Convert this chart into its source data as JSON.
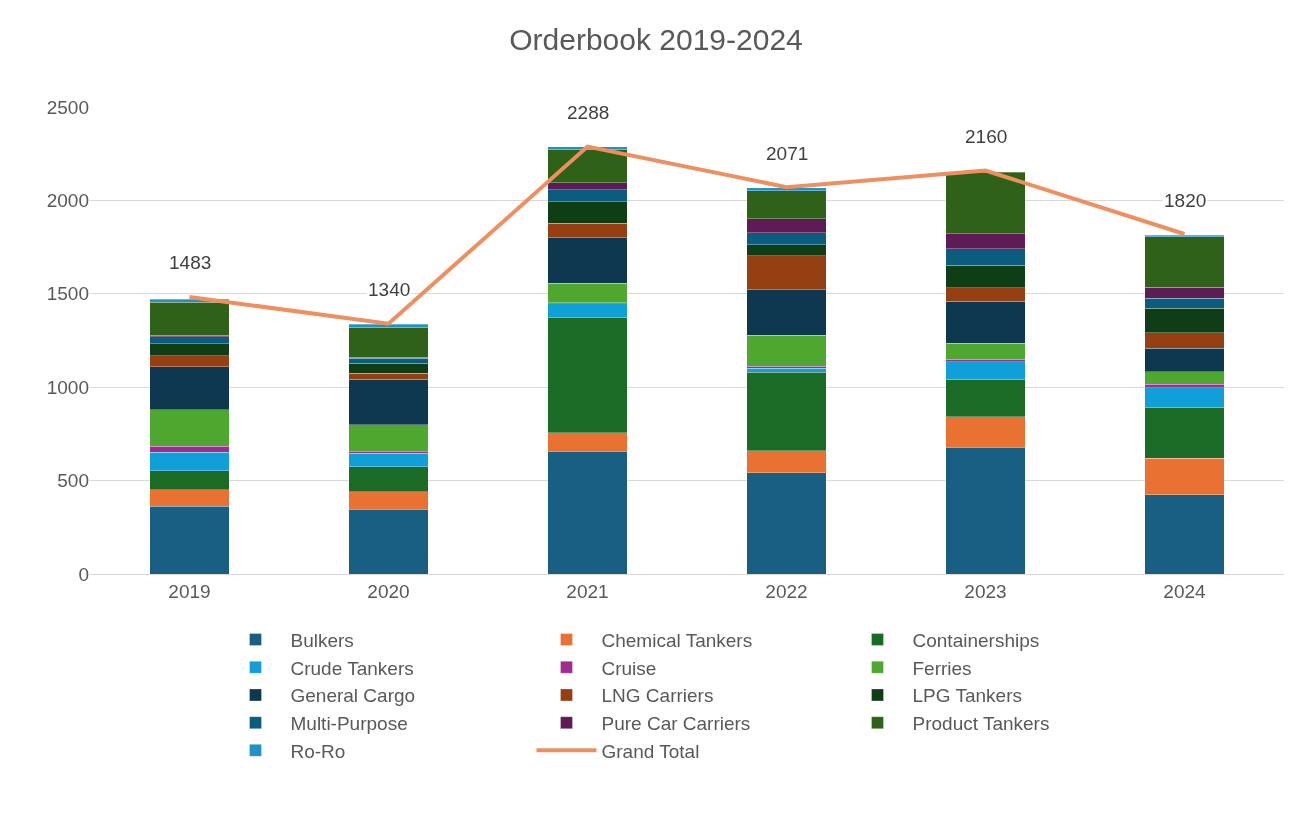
{
  "chart_data": {
    "type": "bar",
    "title": "Orderbook 2019-2024",
    "stacked": true,
    "categories": [
      "2019",
      "2020",
      "2021",
      "2022",
      "2023",
      "2024"
    ],
    "series": [
      {
        "name": "Bulkers",
        "color": "#185f83",
        "values": [
          363,
          346,
          657,
          541,
          679,
          425
        ]
      },
      {
        "name": "Chemical Tankers",
        "color": "#e97132",
        "values": [
          89,
          95,
          100,
          120,
          164,
          196
        ]
      },
      {
        "name": "Containerships",
        "color": "#1a6b25",
        "values": [
          102,
          134,
          618,
          420,
          200,
          271
        ]
      },
      {
        "name": "Crude Tankers",
        "color": "#119fd8",
        "values": [
          98,
          71,
          71,
          21,
          93,
          105
        ]
      },
      {
        "name": "Cruise",
        "color": "#a02b93",
        "values": [
          32,
          9,
          5,
          11,
          14,
          18
        ]
      },
      {
        "name": "Ferries",
        "color": "#4ea72e",
        "values": [
          196,
          145,
          105,
          164,
          84,
          68
        ]
      },
      {
        "name": "General Cargo",
        "color": "#0e384f",
        "values": [
          229,
          243,
          243,
          245,
          227,
          125
        ]
      },
      {
        "name": "LNG Carriers",
        "color": "#953f12",
        "values": [
          59,
          32,
          80,
          182,
          71,
          84
        ]
      },
      {
        "name": "LPG Tankers",
        "color": "#0f3d16",
        "values": [
          64,
          54,
          113,
          59,
          121,
          130
        ]
      },
      {
        "name": "Multi-Purpose",
        "color": "#0b5c7e",
        "values": [
          39,
          25,
          64,
          64,
          88,
          55
        ]
      },
      {
        "name": "Pure Car Carriers",
        "color": "#5f1b55",
        "values": [
          8,
          7,
          38,
          75,
          80,
          57
        ]
      },
      {
        "name": "Product Tankers",
        "color": "#306119",
        "values": [
          177,
          161,
          179,
          150,
          329,
          271
        ]
      },
      {
        "name": "Ro-Ro",
        "color": "#2291c4",
        "values": [
          15,
          14,
          13,
          16,
          null,
          9
        ]
      },
      {
        "name": "Grand Total",
        "type": "line",
        "color": "#ee8f5f",
        "marker": "none",
        "line_style": "solid",
        "values": [
          1483,
          1340,
          2288,
          2071,
          2160,
          1820
        ],
        "value_labels": [
          "1483",
          "1340",
          "2288",
          "2071",
          "2160",
          "1820"
        ]
      }
    ],
    "ylim": [
      0,
      2500
    ],
    "yticks": [
      0,
      500,
      1000,
      1500,
      2000,
      2500
    ],
    "grid": "y",
    "legend": "bottom"
  }
}
